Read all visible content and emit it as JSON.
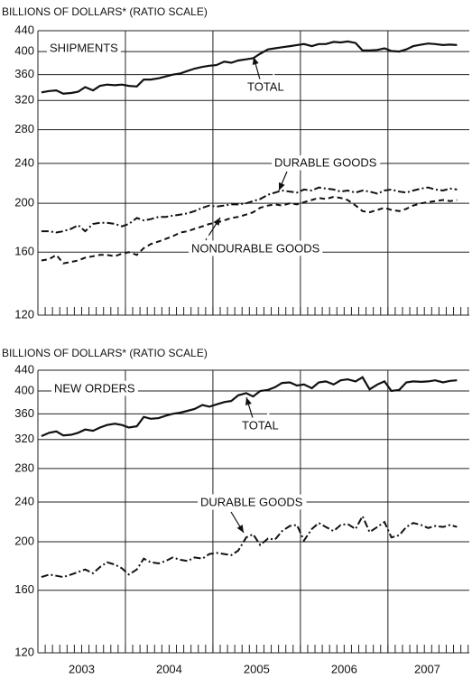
{
  "chart_data": [
    {
      "type": "line",
      "ylabel": "BILLIONS OF DOLLARS* (RATIO SCALE)",
      "log_scale": true,
      "grid": true,
      "color": "#111111",
      "ylim": [
        120,
        440
      ],
      "yticks": [
        120,
        160,
        200,
        240,
        280,
        320,
        360,
        400,
        440
      ],
      "xlim": [
        2003,
        2007.93
      ],
      "year_lines": [
        2004,
        2005,
        2006,
        2007
      ],
      "annotations": [
        "SHIPMENTS",
        "TOTAL",
        "DURABLE GOODS",
        "NONDURABLE GOODS"
      ],
      "x": [
        2003.04,
        2003.13,
        2003.21,
        2003.29,
        2003.38,
        2003.46,
        2003.54,
        2003.63,
        2003.71,
        2003.79,
        2003.88,
        2003.96,
        2004.04,
        2004.13,
        2004.21,
        2004.29,
        2004.38,
        2004.46,
        2004.54,
        2004.63,
        2004.71,
        2004.79,
        2004.88,
        2004.96,
        2005.04,
        2005.13,
        2005.21,
        2005.29,
        2005.38,
        2005.46,
        2005.54,
        2005.63,
        2005.71,
        2005.79,
        2005.88,
        2005.96,
        2006.04,
        2006.13,
        2006.21,
        2006.29,
        2006.38,
        2006.46,
        2006.54,
        2006.63,
        2006.71,
        2006.79,
        2006.88,
        2006.96,
        2007.04,
        2007.13,
        2007.21,
        2007.29,
        2007.38,
        2007.46,
        2007.54,
        2007.63,
        2007.71,
        2007.79
      ],
      "series": [
        {
          "style": "solid",
          "values": [
            332,
            334,
            335,
            330,
            331,
            333,
            340,
            335,
            342,
            344,
            343,
            344,
            342,
            341,
            352,
            352,
            354,
            357,
            360,
            362,
            366,
            370,
            373,
            375,
            376,
            382,
            380,
            384,
            386,
            388,
            396,
            404,
            406,
            408,
            410,
            412,
            414,
            410,
            414,
            414,
            418,
            417,
            419,
            416,
            402,
            402,
            403,
            406,
            401,
            400,
            404,
            410,
            413,
            415,
            414,
            412,
            413,
            412
          ]
        },
        {
          "style": "dashdot",
          "values": [
            176,
            176,
            175,
            176,
            178,
            181,
            176,
            182,
            183,
            183,
            182,
            180,
            182,
            187,
            185,
            186,
            188,
            188,
            189,
            190,
            191,
            193,
            196,
            198,
            197,
            198,
            199,
            199,
            200,
            202,
            204,
            208,
            210,
            212,
            211,
            210,
            213,
            212,
            215,
            214,
            213,
            211,
            212,
            210,
            212,
            211,
            209,
            212,
            213,
            211,
            210,
            212,
            214,
            215,
            213,
            212,
            214,
            213
          ]
        },
        {
          "style": "dashed",
          "values": [
            154,
            155,
            158,
            152,
            153,
            154,
            156,
            157,
            158,
            158,
            157,
            159,
            160,
            158,
            163,
            166,
            168,
            170,
            172,
            175,
            176,
            178,
            180,
            182,
            183,
            185,
            187,
            188,
            190,
            192,
            196,
            198,
            199,
            198,
            200,
            199,
            201,
            203,
            205,
            204,
            206,
            205,
            203,
            198,
            193,
            192,
            194,
            196,
            194,
            193,
            195,
            198,
            200,
            201,
            202,
            203,
            202,
            203
          ]
        }
      ]
    },
    {
      "type": "line",
      "ylabel": "BILLIONS OF DOLLARS* (RATIO SCALE)",
      "log_scale": true,
      "grid": true,
      "color": "#111111",
      "ylim": [
        120,
        440
      ],
      "yticks": [
        120,
        160,
        200,
        240,
        280,
        320,
        360,
        400,
        440
      ],
      "xlim": [
        2003,
        2007.93
      ],
      "year_lines": [
        2004,
        2005,
        2006,
        2007
      ],
      "xticks": [
        {
          "value": 2003.5,
          "label": "2003"
        },
        {
          "value": 2004.5,
          "label": "2004"
        },
        {
          "value": 2005.5,
          "label": "2005"
        },
        {
          "value": 2006.5,
          "label": "2006"
        },
        {
          "value": 2007.45,
          "label": "2007"
        }
      ],
      "annotations": [
        "NEW ORDERS",
        "TOTAL",
        "DURABLE GOODS"
      ],
      "x": [
        2003.04,
        2003.13,
        2003.21,
        2003.29,
        2003.38,
        2003.46,
        2003.54,
        2003.63,
        2003.71,
        2003.79,
        2003.88,
        2003.96,
        2004.04,
        2004.13,
        2004.21,
        2004.29,
        2004.38,
        2004.46,
        2004.54,
        2004.63,
        2004.71,
        2004.79,
        2004.88,
        2004.96,
        2005.04,
        2005.13,
        2005.21,
        2005.29,
        2005.38,
        2005.46,
        2005.54,
        2005.63,
        2005.71,
        2005.79,
        2005.88,
        2005.96,
        2006.04,
        2006.13,
        2006.21,
        2006.29,
        2006.38,
        2006.46,
        2006.54,
        2006.63,
        2006.71,
        2006.79,
        2006.88,
        2006.96,
        2007.04,
        2007.13,
        2007.21,
        2007.29,
        2007.38,
        2007.46,
        2007.54,
        2007.63,
        2007.71,
        2007.79
      ],
      "series": [
        {
          "style": "solid",
          "values": [
            325,
            330,
            332,
            326,
            327,
            330,
            335,
            333,
            338,
            342,
            344,
            342,
            338,
            340,
            355,
            352,
            353,
            357,
            360,
            362,
            365,
            368,
            375,
            372,
            376,
            380,
            382,
            392,
            396,
            390,
            400,
            402,
            407,
            415,
            416,
            410,
            412,
            405,
            416,
            418,
            412,
            420,
            422,
            418,
            426,
            403,
            412,
            418,
            400,
            402,
            416,
            418,
            417,
            418,
            420,
            416,
            419,
            420
          ]
        },
        {
          "style": "dashdot",
          "values": [
            170,
            172,
            171,
            170,
            172,
            174,
            176,
            173,
            178,
            182,
            180,
            177,
            172,
            176,
            185,
            182,
            181,
            183,
            186,
            184,
            183,
            186,
            185,
            189,
            190,
            189,
            188,
            192,
            204,
            207,
            197,
            203,
            202,
            210,
            215,
            216,
            201,
            212,
            218,
            214,
            210,
            216,
            217,
            212,
            225,
            209,
            214,
            219,
            204,
            206,
            214,
            218,
            216,
            213,
            215,
            214,
            216,
            214
          ]
        }
      ]
    }
  ]
}
